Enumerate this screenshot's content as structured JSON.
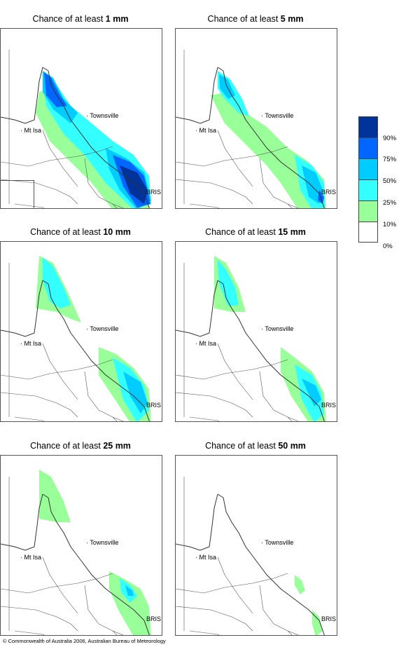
{
  "panels": [
    {
      "prefix": "Chance of at least ",
      "amount": "1 mm"
    },
    {
      "prefix": "Chance of at least ",
      "amount": "5 mm"
    },
    {
      "prefix": "Chance of at least ",
      "amount": "10 mm"
    },
    {
      "prefix": "Chance of at least ",
      "amount": "15 mm"
    },
    {
      "prefix": "Chance of at least ",
      "amount": "25 mm"
    },
    {
      "prefix": "Chance of at least ",
      "amount": "50 mm"
    }
  ],
  "places": {
    "townsville": "Townsville",
    "mt_isa": "Mt Isa",
    "bris": "BRIS"
  },
  "legend": {
    "labels": [
      "90%",
      "75%",
      "50%",
      "25%",
      "10%",
      "0%"
    ],
    "colors": [
      "#003399",
      "#0066ff",
      "#00ccff",
      "#33ffff",
      "#99ff99",
      "#ffffff"
    ]
  },
  "footer": "© Commonwealth of Australia 2006, Australian Bureau of Meteorology"
}
